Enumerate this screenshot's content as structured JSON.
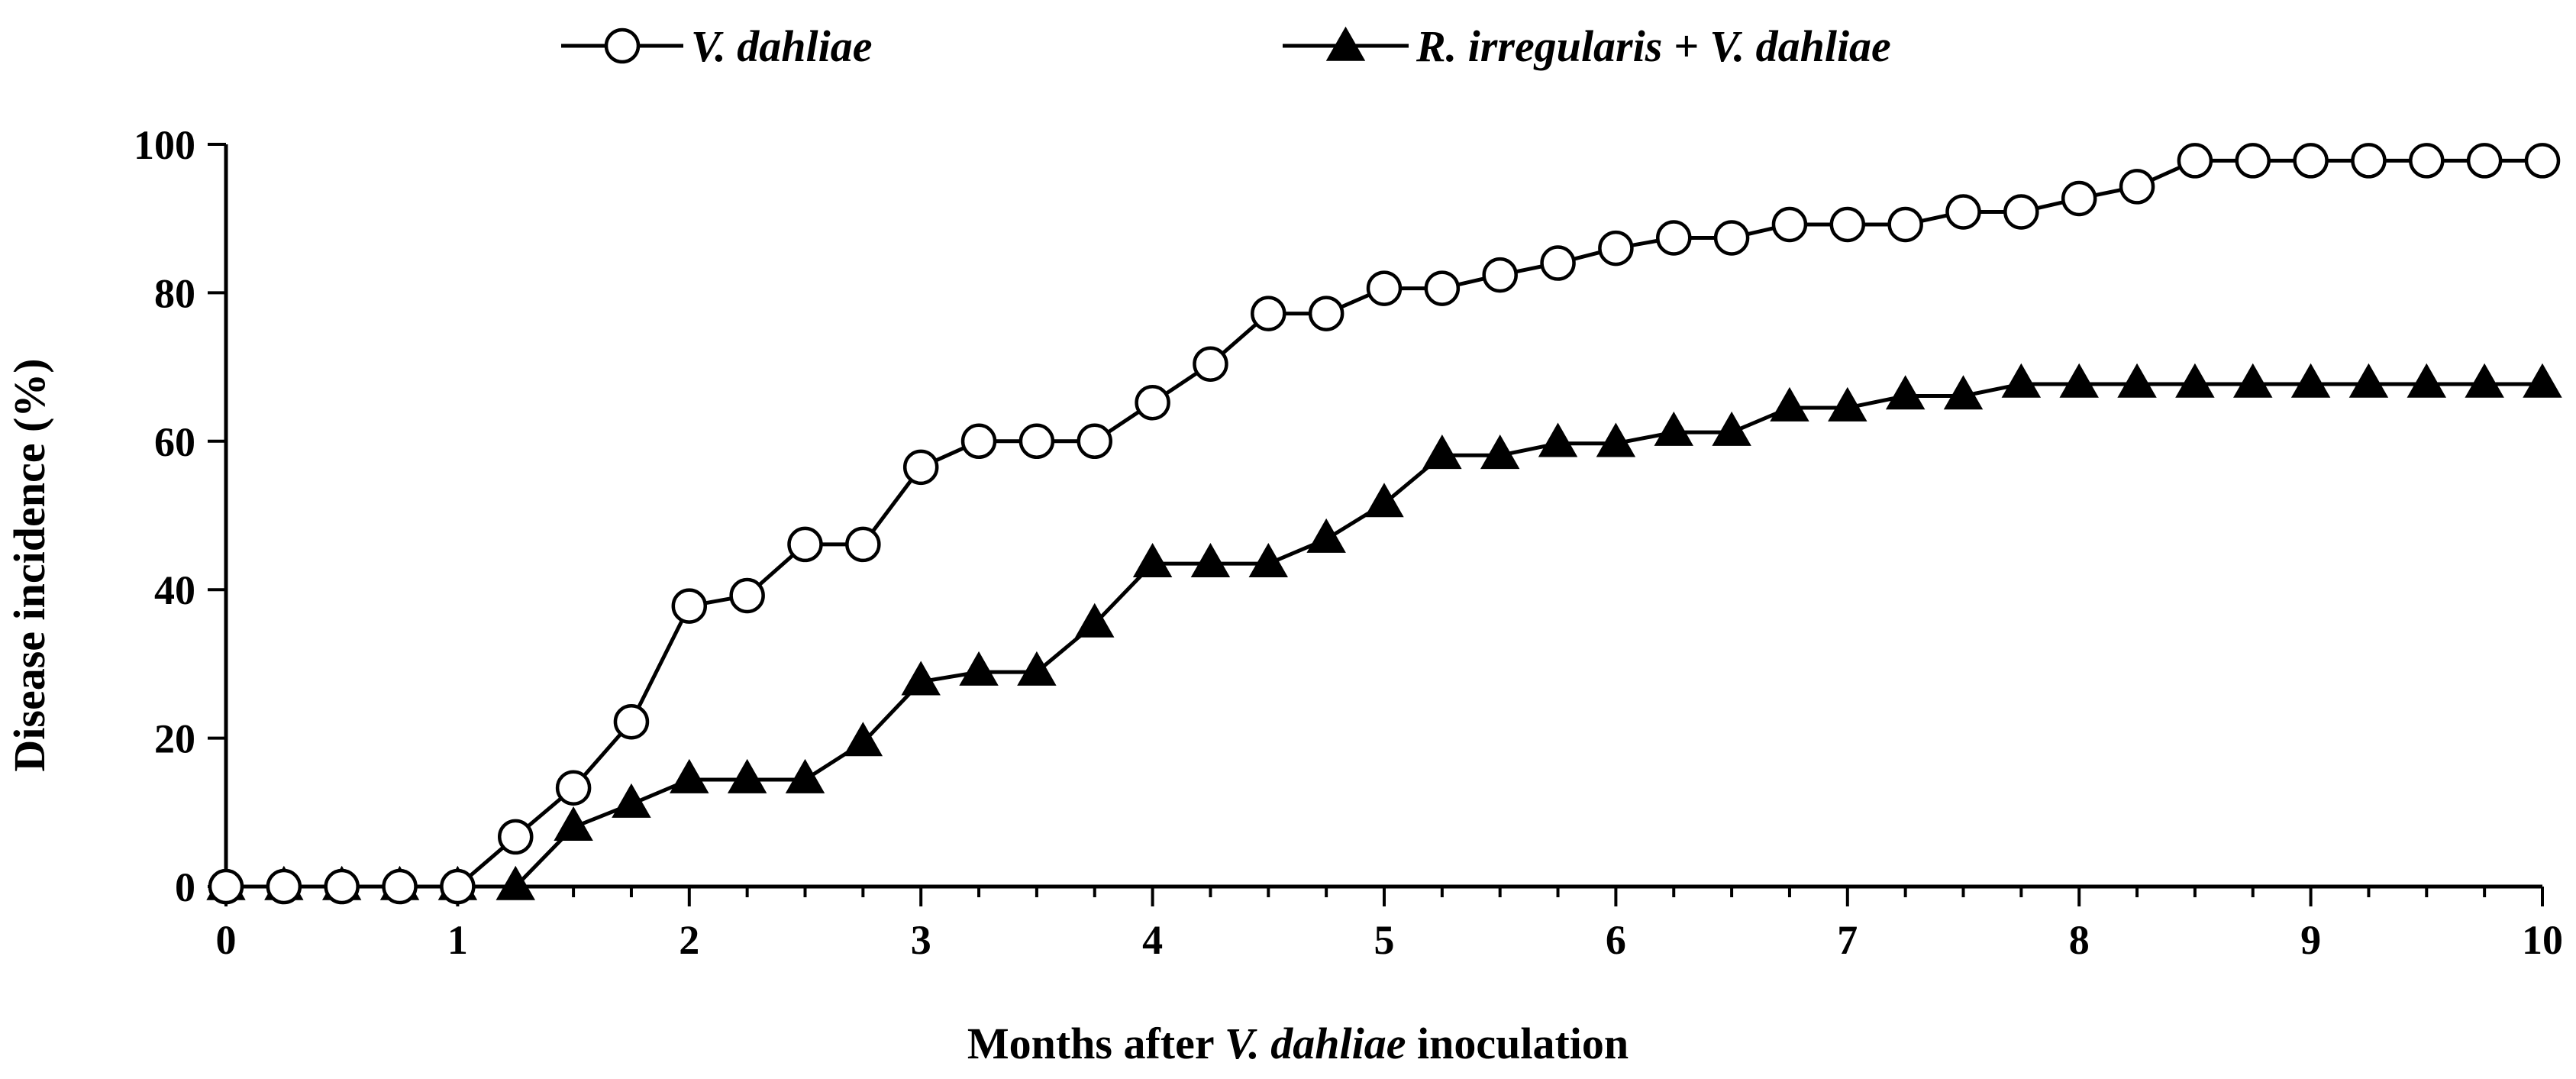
{
  "chart_data": {
    "type": "line",
    "title": "",
    "xlabel": {
      "prefix": "Months after ",
      "italic": "V. dahliae",
      "suffix": " inoculation"
    },
    "ylabel": "Disease incidence (%)",
    "xlim": [
      0,
      10
    ],
    "ylim": [
      0,
      100
    ],
    "x_ticks": [
      "0",
      "1",
      "2",
      "3",
      "4",
      "5",
      "6",
      "7",
      "8",
      "9",
      "10"
    ],
    "y_ticks": [
      "0",
      "20",
      "40",
      "60",
      "80",
      "100"
    ],
    "grid": false,
    "legend_position": "top-center",
    "x": [
      0,
      0.25,
      0.5,
      0.75,
      1,
      1.25,
      1.5,
      1.75,
      2,
      2.25,
      2.5,
      2.75,
      3,
      3.25,
      3.5,
      3.75,
      4,
      4.25,
      4.5,
      4.75,
      5,
      5.25,
      5.5,
      5.75,
      6,
      6.25,
      6.5,
      6.75,
      7,
      7.25,
      7.5,
      7.75,
      8,
      8.25,
      8.5,
      8.75,
      9,
      9.25,
      9.5,
      9.75,
      10
    ],
    "series": [
      {
        "name": "V. dahliae",
        "marker": "open-circle",
        "color": "#000000",
        "values": [
          0,
          0,
          0,
          0,
          0,
          6.7,
          13.3,
          22.2,
          37.8,
          39.2,
          46.1,
          46.1,
          56.5,
          60,
          60,
          60,
          65.2,
          70.4,
          77.2,
          77.2,
          80.6,
          80.6,
          82.4,
          84,
          86,
          87.4,
          87.4,
          89.2,
          89.2,
          89.2,
          90.9,
          90.9,
          92.7,
          94.3,
          97.8,
          97.8,
          97.8,
          97.8,
          97.8,
          97.8,
          97.8
        ]
      },
      {
        "name": "R. irregularis + V. dahliae",
        "marker": "filled-triangle",
        "color": "#000000",
        "values": [
          0,
          0,
          0,
          0,
          0,
          0,
          8,
          11.1,
          14.4,
          14.4,
          14.4,
          19.4,
          27.6,
          28.9,
          28.9,
          35.4,
          43.5,
          43.5,
          43.5,
          46.8,
          51.6,
          58.1,
          58.1,
          59.7,
          59.7,
          61.2,
          61.2,
          64.5,
          64.5,
          66.1,
          66.1,
          67.7,
          67.7,
          67.7,
          67.7,
          67.7,
          67.7,
          67.7,
          67.7,
          67.7,
          67.7
        ]
      }
    ]
  }
}
